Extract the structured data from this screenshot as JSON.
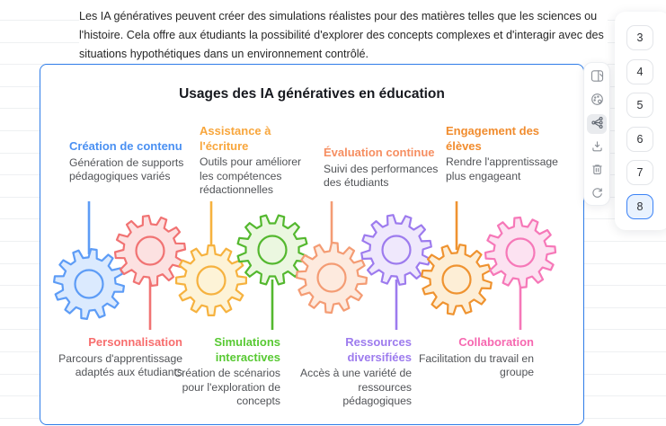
{
  "paragraph": "Les IA génératives peuvent créer des simulations réalistes pour des matières telles que les sciences ou l'histoire. Cela offre aux étudiants la possibilité d'explorer des concepts complexes et d'interagir avec des situations hypothétiques dans un environnement contrôlé.",
  "diagram": {
    "title": "Usages des IA génératives en éducation",
    "border_color": "#2e7ce8",
    "items": [
      {
        "label": "Création de contenu",
        "desc": "Génération de supports pédagogiques variés",
        "color": "#4a90f2",
        "gear_stroke": "#5d9cf6",
        "gear_fill": "#dbeafe",
        "position": "top"
      },
      {
        "label": "Personnalisation",
        "desc": "Parcours d'apprentissage adaptés aux étudiants",
        "color": "#f76e6e",
        "gear_stroke": "#f17373",
        "gear_fill": "#fce1e1",
        "position": "bottom"
      },
      {
        "label": "Assistance à l'écriture",
        "desc": "Outils pour améliorer les compétences rédactionnelles",
        "color": "#f8a63c",
        "gear_stroke": "#f6b23f",
        "gear_fill": "#fdf3d7",
        "position": "top"
      },
      {
        "label": "Simulations interactives",
        "desc": "Création de scénarios pour l'exploration de concepts",
        "color": "#58c933",
        "gear_stroke": "#54b82f",
        "gear_fill": "#ebf7e0",
        "position": "bottom"
      },
      {
        "label": "Évaluation continue",
        "desc": "Suivi des performances des étudiants",
        "color": "#f68f62",
        "gear_stroke": "#f49c74",
        "gear_fill": "#fdeade",
        "position": "top"
      },
      {
        "label": "Ressources diversifiées",
        "desc": "Accès à une variété de ressources pédagogiques",
        "color": "#9d7bee",
        "gear_stroke": "#9d7bee",
        "gear_fill": "#efe8fc",
        "position": "bottom"
      },
      {
        "label": "Engagement des élèves",
        "desc": "Rendre l'apprentissage plus engageant",
        "color": "#f18c2e",
        "gear_stroke": "#ef9330",
        "gear_fill": "#fdeed6",
        "position": "top"
      },
      {
        "label": "Collaboration",
        "desc": "Facilitation du travail en groupe",
        "color": "#f668b0",
        "gear_stroke": "#f678b8",
        "gear_fill": "#fce2f1",
        "position": "bottom"
      }
    ]
  },
  "toolbar": {
    "icons": [
      "reader-icon",
      "palette-icon",
      "mindmap-icon",
      "download-icon",
      "trash-icon",
      "refresh-icon"
    ],
    "selected_icon": "mindmap-icon"
  },
  "pager": {
    "numbers": [
      "3",
      "4",
      "5",
      "6",
      "7",
      "8"
    ],
    "selected": "8",
    "selected_color": "#3b82f6"
  }
}
